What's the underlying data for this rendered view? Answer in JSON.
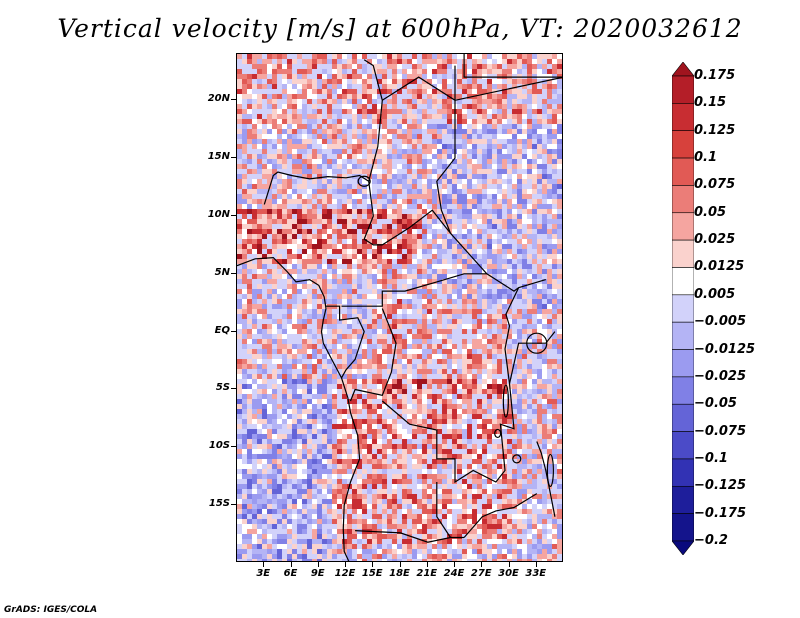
{
  "title": "Vertical velocity [m/s] at 600hPa, VT: 2020032612",
  "map": {
    "lat_range": [
      -20,
      24
    ],
    "lon_range": [
      0,
      36
    ],
    "lat_ticks": [
      "20N",
      "15N",
      "10N",
      "5N",
      "EQ",
      "5S",
      "10S",
      "15S"
    ],
    "lat_tick_values": [
      20,
      15,
      10,
      5,
      0,
      -5,
      -10,
      -15
    ],
    "lon_ticks": [
      "3E",
      "6E",
      "9E",
      "12E",
      "15E",
      "18E",
      "21E",
      "24E",
      "27E",
      "30E",
      "33E"
    ],
    "lon_tick_values": [
      3,
      6,
      9,
      12,
      15,
      18,
      21,
      24,
      27,
      30,
      33
    ],
    "field_description_colors": {
      "ascent": "#2222b0",
      "weak": "#ffffff",
      "descent": "#c41a1a"
    }
  },
  "colorbar": {
    "labels": [
      "0.175",
      "0.15",
      "0.125",
      "0.1",
      "0.075",
      "0.05",
      "0.025",
      "0.0125",
      "0.005",
      "−0.005",
      "−0.0125",
      "−0.025",
      "−0.05",
      "−0.075",
      "−0.1",
      "−0.125",
      "−0.175",
      "−0.2"
    ],
    "colors": [
      "#a0141e",
      "#b41e28",
      "#c82d32",
      "#d7413c",
      "#e15a55",
      "#eb7d78",
      "#f5a5a0",
      "#fad2cd",
      "#ffffff",
      "#d2d2fa",
      "#b4b4f5",
      "#9b9bf0",
      "#8080e6",
      "#6464d7",
      "#4b4bc8",
      "#3232b4",
      "#1e1e9b",
      "#14148c",
      "#0a0a7d"
    ]
  },
  "credit": "GrADS: IGES/COLA"
}
